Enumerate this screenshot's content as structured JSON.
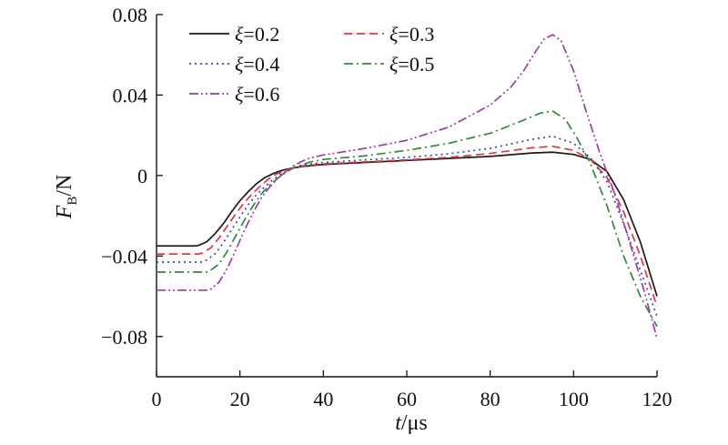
{
  "chart_data": {
    "type": "line",
    "xlabel": {
      "var": "t",
      "unit": "/μs"
    },
    "ylabel": {
      "var": "F",
      "sub": "B",
      "unit": "/N"
    },
    "xlim": [
      0,
      120
    ],
    "ylim": [
      -0.1,
      0.08
    ],
    "xticks": [
      0,
      20,
      40,
      60,
      80,
      100,
      120
    ],
    "xtick_labels": [
      "0",
      "20",
      "40",
      "60",
      "80",
      "100",
      "120"
    ],
    "yticks": [
      -0.08,
      -0.04,
      0,
      0.04,
      0.08
    ],
    "ytick_labels": [
      "−0.08",
      "−0.04",
      "0",
      "0.04",
      "0.08"
    ],
    "grid": false,
    "legend_position": "top-left",
    "series": [
      {
        "name": "ξ=0.2",
        "legend_var": "ξ",
        "legend_value": "=0.2",
        "color": "#1a1a1a",
        "dash": "solid",
        "x": [
          0,
          9,
          10,
          12,
          14,
          16,
          18,
          20,
          22,
          24,
          26,
          28,
          30,
          32,
          35,
          40,
          50,
          60,
          70,
          80,
          90,
          95,
          100,
          104,
          108,
          112,
          116,
          120
        ],
        "y": [
          -0.035,
          -0.035,
          -0.0348,
          -0.033,
          -0.029,
          -0.024,
          -0.018,
          -0.0125,
          -0.008,
          -0.004,
          -0.001,
          0.001,
          0.0025,
          0.0035,
          0.0045,
          0.0055,
          0.0065,
          0.0075,
          0.0085,
          0.0095,
          0.0112,
          0.0116,
          0.0105,
          0.008,
          0.002,
          -0.012,
          -0.033,
          -0.06
        ]
      },
      {
        "name": "ξ=0.3",
        "legend_var": "ξ",
        "legend_value": "=0.3",
        "color": "#e8343b",
        "dash": "dash",
        "x": [
          0,
          10,
          11,
          13,
          15,
          17,
          19,
          21,
          23,
          25,
          27,
          29,
          31,
          33,
          35,
          40,
          50,
          60,
          70,
          80,
          90,
          95,
          100,
          104,
          108,
          112,
          116,
          120
        ],
        "y": [
          -0.039,
          -0.039,
          -0.0385,
          -0.036,
          -0.031,
          -0.025,
          -0.019,
          -0.0135,
          -0.009,
          -0.005,
          -0.0015,
          0.001,
          0.0025,
          0.004,
          0.0048,
          0.0058,
          0.0068,
          0.0078,
          0.009,
          0.011,
          0.0138,
          0.0145,
          0.0125,
          0.008,
          -0.001,
          -0.018,
          -0.04,
          -0.065
        ]
      },
      {
        "name": "ξ=0.4",
        "legend_var": "ξ",
        "legend_value": "=0.4",
        "color": "#3a47a8",
        "dash": "dot",
        "x": [
          0,
          11,
          12,
          14,
          16,
          18,
          20,
          22,
          24,
          26,
          28,
          30,
          32,
          34,
          36,
          40,
          50,
          60,
          70,
          80,
          90,
          95,
          100,
          104,
          108,
          112,
          116,
          120
        ],
        "y": [
          -0.043,
          -0.043,
          -0.042,
          -0.039,
          -0.0335,
          -0.027,
          -0.0205,
          -0.0145,
          -0.0095,
          -0.0055,
          -0.002,
          0.001,
          0.003,
          0.0045,
          0.0055,
          0.0065,
          0.0078,
          0.009,
          0.0108,
          0.0135,
          0.018,
          0.0195,
          0.016,
          0.009,
          -0.003,
          -0.024,
          -0.047,
          -0.07
        ]
      },
      {
        "name": "ξ=0.5",
        "legend_var": "ξ",
        "legend_value": "=0.5",
        "color": "#2e8b3a",
        "dash": "dashdot",
        "x": [
          0,
          12,
          13,
          15,
          17,
          19,
          21,
          23,
          25,
          27,
          29,
          31,
          33,
          35,
          37,
          40,
          50,
          60,
          70,
          80,
          88,
          92,
          95,
          98,
          101,
          104,
          108,
          112,
          116,
          120
        ],
        "y": [
          -0.048,
          -0.048,
          -0.047,
          -0.044,
          -0.0375,
          -0.03,
          -0.0225,
          -0.0155,
          -0.0095,
          -0.005,
          -0.0015,
          0.0015,
          0.004,
          0.0055,
          0.0068,
          0.008,
          0.0098,
          0.0125,
          0.016,
          0.021,
          0.0275,
          0.031,
          0.032,
          0.028,
          0.018,
          0.006,
          -0.015,
          -0.04,
          -0.06,
          -0.075
        ]
      },
      {
        "name": "ξ=0.6",
        "legend_var": "ξ",
        "legend_value": "=0.6",
        "color": "#a03aa8",
        "dash": "dashdotdot",
        "x": [
          0,
          12,
          13,
          15,
          17,
          19,
          21,
          23,
          25,
          27,
          29,
          31,
          33,
          35,
          37,
          40,
          50,
          60,
          70,
          80,
          85,
          88,
          91,
          93,
          95,
          97,
          100,
          103,
          106,
          110,
          114,
          117,
          120
        ],
        "y": [
          -0.057,
          -0.057,
          -0.0565,
          -0.053,
          -0.046,
          -0.037,
          -0.0275,
          -0.019,
          -0.0115,
          -0.006,
          -0.0015,
          0.002,
          0.005,
          0.0072,
          0.0088,
          0.0102,
          0.0135,
          0.0175,
          0.024,
          0.035,
          0.044,
          0.052,
          0.062,
          0.068,
          0.07,
          0.067,
          0.052,
          0.032,
          0.013,
          -0.01,
          -0.037,
          -0.058,
          -0.081
        ]
      }
    ]
  }
}
